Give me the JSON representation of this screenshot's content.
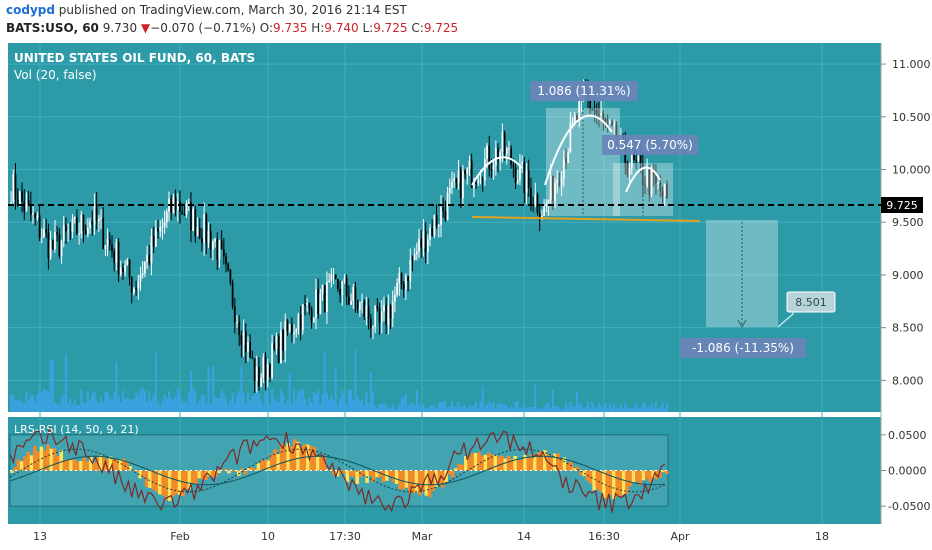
{
  "header": {
    "username": "codypd",
    "published_text": "published on TradingView.com, March 30, 2016 21:14 EST",
    "symbol": "BATS:USO, 60",
    "last": "9.730",
    "change_arrow": "▼",
    "change": "−0.070 (−0.71%)",
    "open_label": "O:",
    "open": "9.735",
    "high_label": "H:",
    "high": "9.740",
    "low_label": "L:",
    "low": "9.725",
    "close_label": "C:",
    "close": "9.725"
  },
  "chart": {
    "title": "UNITED STATES OIL FUND, 60, BATS",
    "volume_label": "Vol (20, false)",
    "rsi_label": "LRS-RSI (14, 50, 9, 21)",
    "background_color": "#2d9aa8",
    "candle_up_color": "#ffffff",
    "candle_down_color": "#000000",
    "volume_color": "#3da5ef",
    "support_line_color": "#e0a020",
    "price_axis": {
      "min": 7.7,
      "max": 11.2,
      "ticks": [
        "11.000",
        "10.500",
        "10.000",
        "9.500",
        "9.000",
        "8.500",
        "8.000"
      ]
    },
    "current_price": "9.725",
    "x_ticks": [
      "13",
      "Feb",
      "10",
      "17:30",
      "Mar",
      "14",
      "16:30",
      "Apr",
      "18"
    ],
    "measure_up_1": "1.086 (11.31%)",
    "measure_up_2": "0.547 (5.70%)",
    "measure_down": "-1.086 (-11.35%)",
    "target_price": "8.501",
    "rsi_axis": {
      "min": -0.075,
      "max": 0.075,
      "ticks": [
        "0.0500",
        "0.0000",
        "-0.0500"
      ]
    }
  },
  "chart_data": {
    "type": "line",
    "title": "UNITED STATES OIL FUND, 60, BATS",
    "x": [
      "13",
      "",
      "",
      "",
      "Feb",
      "",
      "10",
      "",
      "17:30",
      "",
      "Mar",
      "",
      "14",
      "",
      "16:30",
      "",
      "Apr"
    ],
    "series": [
      {
        "values": [
          9.85,
          9.25,
          9.55,
          8.9,
          9.7,
          9.3,
          8.0,
          8.6,
          8.9,
          8.5,
          9.3,
          9.9,
          10.2,
          9.6,
          10.7,
          10.1,
          9.725
        ]
      }
    ],
    "ylim": [
      7.7,
      11.2
    ],
    "annotations": {
      "neckline": 9.57,
      "last_price": 9.725,
      "target": 8.501,
      "head_high": 10.72,
      "rsi_levels": [
        0.05,
        0.0,
        -0.05
      ]
    }
  }
}
